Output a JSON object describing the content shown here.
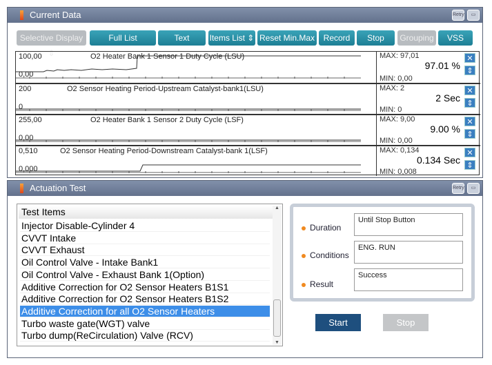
{
  "current_data": {
    "title": "Current Data",
    "retry": "Retry",
    "toolbar": [
      {
        "label": "Selective Display ⇕",
        "enabled": false
      },
      {
        "label": "Full List",
        "enabled": true
      },
      {
        "label": "Text",
        "enabled": true
      },
      {
        "label": "Items List ⇕",
        "enabled": true
      },
      {
        "label": "Reset Min.Max",
        "enabled": true
      },
      {
        "label": "Record",
        "enabled": true
      },
      {
        "label": "Stop",
        "enabled": true
      },
      {
        "label": "Grouping",
        "enabled": false
      },
      {
        "label": "VSS",
        "enabled": true
      }
    ],
    "rows": [
      {
        "name": "O2 Heater Bank 1 Sensor 1 Duty Cycle (LSU)",
        "top": "100,00",
        "bottom": "0,00",
        "max": "MAX: 97,01",
        "min": "MIN: 0,00",
        "value": "97.01 %"
      },
      {
        "name": "O2 Sensor Heating Period-Upstream Catalyst-bank1(LSU)",
        "top": "200",
        "bottom": "0",
        "max": "MAX: 2",
        "min": "MIN: 0",
        "value": "2 Sec"
      },
      {
        "name": "O2 Heater Bank 1 Sensor 2 Duty Cycle (LSF)",
        "top": "255,00",
        "bottom": "0,00",
        "max": "MAX: 9,00",
        "min": "MIN: 0,00",
        "value": "9.00 %"
      },
      {
        "name": "O2 Sensor Heating Period-Downstream Catalyst-bank 1(LSF)",
        "top": "0,510",
        "bottom": "0,000",
        "max": "MAX: 0,134",
        "min": "MIN: 0,008",
        "value": "0.134 Sec"
      }
    ]
  },
  "actuation": {
    "title": "Actuation Test",
    "retry": "Retry",
    "list_header": "Test Items",
    "items": [
      "Injector Disable-Cylinder 4",
      "CVVT Intake",
      "CVVT Exhaust",
      "Oil Control Valve - Intake Bank1",
      "Oil Control Valve - Exhaust Bank 1(Option)",
      "Additive Correction for O2 Sensor Heaters B1S1",
      "Additive Correction for O2 Sensor Heaters B1S2",
      "Additive Correction for all O2 Sensor Heaters",
      "Turbo waste gate(WGT) valve",
      "Turbo dump(ReCirculation) Valve (RCV)"
    ],
    "selected_index": 7,
    "duration_label": "Duration",
    "duration": "Until Stop Button",
    "conditions_label": "Conditions",
    "conditions": "ENG. RUN",
    "result_label": "Result",
    "result": "Success",
    "start": "Start",
    "stop": "Stop"
  },
  "colors": {
    "accent": "#1d7f95",
    "selected": "#3d8ee8",
    "start": "#1e4f7e"
  }
}
